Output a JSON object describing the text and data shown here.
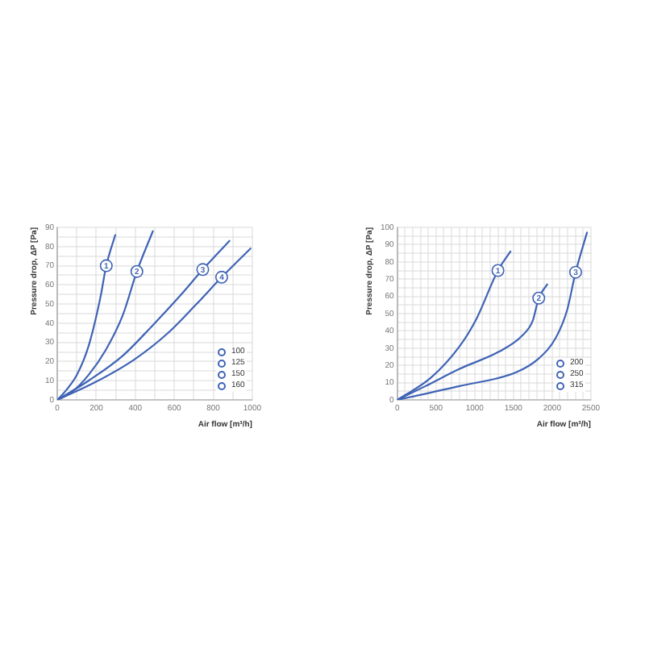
{
  "chart_data": [
    {
      "type": "line",
      "xlabel": "Air flow [m³/h]",
      "ylabel": "Pressure drop, ΔP [Pa]",
      "xlim": [
        0,
        1000
      ],
      "xticks": [
        0,
        {
          "value": 100,
          "label": null
        },
        200,
        {
          "value": 300,
          "label": null
        },
        400,
        {
          "value": 500,
          "label": null
        },
        600,
        {
          "value": 700,
          "label": null
        },
        800,
        {
          "value": 900,
          "label": null
        },
        1000
      ],
      "ylim": [
        0,
        90
      ],
      "yticks": [
        0,
        {
          "value": 5,
          "label": null
        },
        10,
        {
          "value": 15,
          "label": null
        },
        20,
        {
          "value": 25,
          "label": null
        },
        30,
        {
          "value": 35,
          "label": null
        },
        40,
        {
          "value": 45,
          "label": null
        },
        50,
        {
          "value": 55,
          "label": null
        },
        60,
        {
          "value": 65,
          "label": null
        },
        70,
        {
          "value": 75,
          "label": null
        },
        80,
        {
          "value": 85,
          "label": null
        },
        90
      ],
      "grid": true,
      "legend": "bottom right",
      "marker": "none",
      "line_style": "solid",
      "series": [
        {
          "name": "100",
          "color": "#3f63b5",
          "x": [
            0,
            45,
            100,
            160,
            220,
            251,
            297
          ],
          "values": [
            0,
            5,
            13,
            28,
            53,
            70,
            86
          ]
        },
        {
          "name": "125",
          "color": "#3f63b5",
          "x": [
            0,
            73,
            160,
            248,
            335,
            408,
            490
          ],
          "values": [
            0,
            4,
            13,
            26,
            44,
            67,
            88
          ]
        },
        {
          "name": "150",
          "color": "#3f63b5",
          "x": [
            0,
            160,
            335,
            481,
            627,
            746,
            883
          ],
          "values": [
            0,
            10,
            23,
            38,
            54,
            68,
            83
          ]
        },
        {
          "name": "160",
          "color": "#3f63b5",
          "x": [
            0,
            190,
            394,
            569,
            714,
            843,
            991
          ],
          "values": [
            0,
            9,
            21,
            35,
            50,
            64,
            79
          ]
        }
      ],
      "annotations": [
        {
          "text": "1",
          "x": 251,
          "y": 70
        },
        {
          "text": "2",
          "x": 408,
          "y": 67
        },
        {
          "text": "3",
          "x": 746,
          "y": 68
        },
        {
          "text": "4",
          "x": 843,
          "y": 64
        }
      ]
    },
    {
      "type": "line",
      "xlabel": "Air flow [m³/h]",
      "ylabel": "Pressure drop, ΔP [Pa]",
      "xlim": [
        0,
        2500
      ],
      "xticks": [
        0,
        {
          "value": 100,
          "label": null
        },
        {
          "value": 200,
          "label": null
        },
        {
          "value": 300,
          "label": null
        },
        {
          "value": 400,
          "label": null
        },
        500,
        {
          "value": 600,
          "label": null
        },
        {
          "value": 700,
          "label": null
        },
        {
          "value": 800,
          "label": null
        },
        {
          "value": 900,
          "label": null
        },
        1000,
        {
          "value": 1100,
          "label": null
        },
        {
          "value": 1200,
          "label": null
        },
        {
          "value": 1300,
          "label": null
        },
        {
          "value": 1400,
          "label": null
        },
        1500,
        {
          "value": 1600,
          "label": null
        },
        {
          "value": 1700,
          "label": null
        },
        {
          "value": 1800,
          "label": null
        },
        {
          "value": 1900,
          "label": null
        },
        2000,
        {
          "value": 2100,
          "label": null
        },
        {
          "value": 2200,
          "label": null
        },
        {
          "value": 2300,
          "label": null
        },
        {
          "value": 2400,
          "label": null
        },
        2500
      ],
      "ylim": [
        0,
        100
      ],
      "yticks": [
        0,
        {
          "value": 5,
          "label": null
        },
        10,
        {
          "value": 15,
          "label": null
        },
        20,
        {
          "value": 25,
          "label": null
        },
        30,
        {
          "value": 35,
          "label": null
        },
        40,
        {
          "value": 45,
          "label": null
        },
        50,
        {
          "value": 55,
          "label": null
        },
        60,
        {
          "value": 65,
          "label": null
        },
        70,
        {
          "value": 75,
          "label": null
        },
        80,
        {
          "value": 85,
          "label": null
        },
        90,
        {
          "value": 95,
          "label": null
        },
        100
      ],
      "grid": true,
      "legend": "bottom right",
      "marker": "none",
      "line_style": "solid",
      "series": [
        {
          "name": "200",
          "color": "#3f63b5",
          "x": [
            0,
            439,
            804,
            1023,
            1300,
            1462
          ],
          "values": [
            0,
            13,
            31,
            47,
            75,
            86
          ]
        },
        {
          "name": "250",
          "color": "#3f63b5",
          "x": [
            0,
            365,
            804,
            1316,
            1608,
            1750,
            1827,
            1937
          ],
          "values": [
            0,
            8,
            18,
            28,
            37,
            46,
            59,
            67
          ]
        },
        {
          "name": "315",
          "color": "#3f63b5",
          "x": [
            0,
            804,
            1535,
            1827,
            2047,
            2193,
            2303,
            2450
          ],
          "values": [
            0,
            8,
            16,
            24,
            36,
            52,
            74,
            97
          ]
        }
      ],
      "annotations": [
        {
          "text": "1",
          "x": 1300,
          "y": 75
        },
        {
          "text": "2",
          "x": 1827,
          "y": 59
        },
        {
          "text": "3",
          "x": 2303,
          "y": 74
        }
      ]
    }
  ]
}
